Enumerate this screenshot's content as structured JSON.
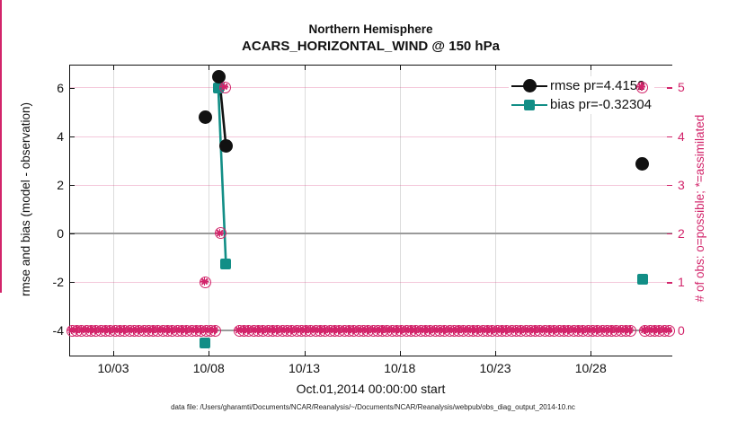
{
  "colors": {
    "rmse": "#111111",
    "bias": "#128E86",
    "obs_axis": "#D2246A",
    "grid_vertical": "#dcdcdc",
    "zero_line": "#9a9a9a"
  },
  "chart_data": {
    "type": "line",
    "title": "Northern Hemisphere",
    "subtitle": "ACARS_HORIZONTAL_WIND @ 150 hPa",
    "xlabel": "Oct.01,2014 00:00:00 start",
    "ylabel_left": "rmse and bias (model - observation)",
    "ylabel_right": "# of obs: o=possible; *=assimilated",
    "caption": "data file: /Users/gharamti/Documents/NCAR/Reanalysis/~/Documents/NCAR/Reanalysis/webpub/obs_diag_output_2014-10.nc",
    "grid": true,
    "legend_position": "top-right",
    "x_axis": {
      "unit": "day of October 2014",
      "range_days": [
        0.69,
        32.27
      ],
      "ticks": [
        {
          "day": 3,
          "label": "10/03"
        },
        {
          "day": 8,
          "label": "10/08"
        },
        {
          "day": 13,
          "label": "10/13"
        },
        {
          "day": 18,
          "label": "10/18"
        },
        {
          "day": 23,
          "label": "10/23"
        },
        {
          "day": 28,
          "label": "10/28"
        }
      ]
    },
    "y_axis_left": {
      "range": [
        -5.06,
        6.94
      ],
      "ticks": [
        {
          "v": 6,
          "label": "6"
        },
        {
          "v": 4,
          "label": "4"
        },
        {
          "v": 2,
          "label": "2"
        },
        {
          "v": 0,
          "label": "0"
        },
        {
          "v": -2,
          "label": "-2"
        },
        {
          "v": -4,
          "label": "-4"
        }
      ]
    },
    "y_axis_right": {
      "range": [
        -0.51,
        5.47
      ],
      "ticks": [
        {
          "v": 5,
          "label": "5"
        },
        {
          "v": 4,
          "label": "4"
        },
        {
          "v": 3,
          "label": "3"
        },
        {
          "v": 2,
          "label": "2"
        },
        {
          "v": 1,
          "label": "1"
        },
        {
          "v": 0,
          "label": "0"
        }
      ]
    },
    "series": [
      {
        "name": "rmse pr=4.4152",
        "color": "#111111",
        "marker": "filled-circle",
        "axis": "left",
        "points": [
          {
            "d": 7.8,
            "v": 4.8
          },
          {
            "d": 8.55,
            "v": 6.45
          },
          {
            "d": 8.9,
            "v": 3.6
          },
          {
            "d": 30.7,
            "v": 2.85
          }
        ],
        "connected_point_indices": [
          1,
          2
        ]
      },
      {
        "name": "bias pr=-0.32304",
        "color": "#128E86",
        "marker": "filled-square",
        "axis": "left",
        "points": [
          {
            "d": 7.8,
            "v": -4.5
          },
          {
            "d": 8.5,
            "v": 6.0
          },
          {
            "d": 8.9,
            "v": -1.25
          },
          {
            "d": 30.7,
            "v": -1.88
          }
        ],
        "connected_point_indices": [
          1,
          2
        ]
      },
      {
        "name": "# of obs (o=possible, *=assimilated)",
        "color": "#D2246A",
        "marker": "circle-with-asterisk",
        "axis": "right",
        "points": [
          {
            "d": 7.8,
            "v": 1
          },
          {
            "d": 8.6,
            "v": 2
          },
          {
            "d": 8.85,
            "v": 5
          },
          {
            "d": 30.7,
            "v": 5
          }
        ],
        "connected_point_indices": []
      }
    ],
    "zero_obs_row": {
      "axis": "right",
      "value": 0,
      "day_start": 0.85,
      "day_end": 32.3,
      "step": 0.25,
      "gaps": [
        [
          8.45,
          9.42
        ],
        [
          30.18,
          30.62
        ]
      ]
    }
  },
  "legend": {
    "items": [
      {
        "label": "rmse pr=4.4152"
      },
      {
        "label": "bias pr=-0.32304"
      }
    ]
  }
}
